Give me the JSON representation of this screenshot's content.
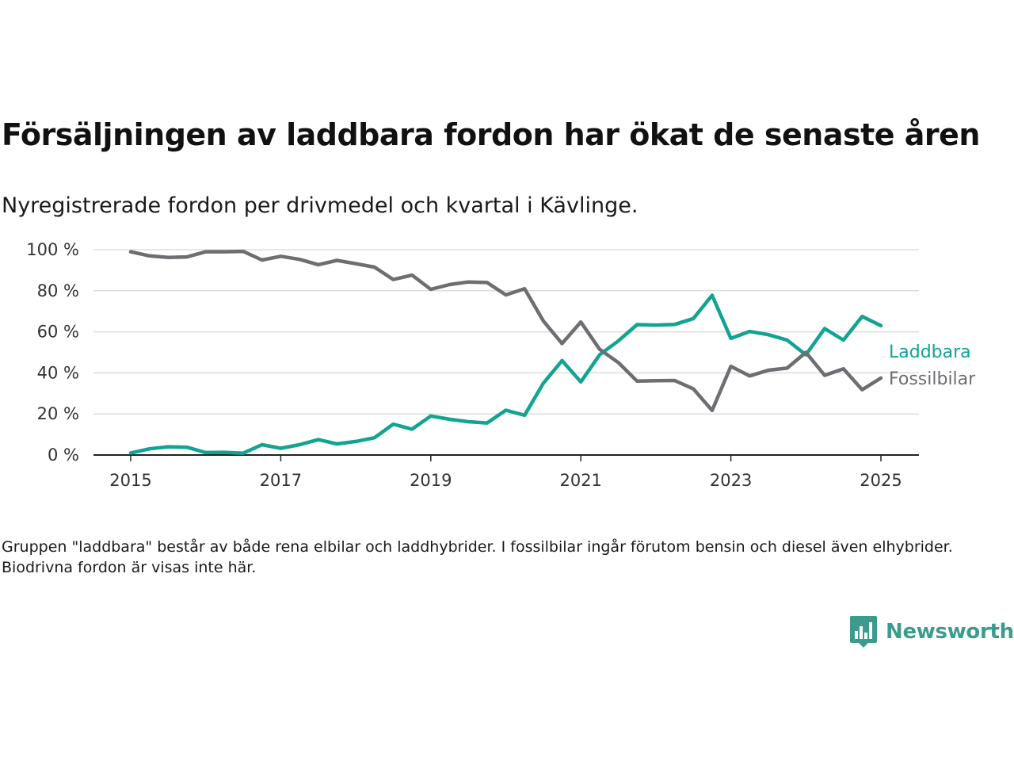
{
  "title": "Försäljningen av laddbara fordon har ökat de senaste åren",
  "subtitle": "Nyregistrerade fordon per drivmedel och kvartal i Kävlinge.",
  "note": "Gruppen \"laddbara\" består av både rena elbilar och laddhybrider. I fossilbilar ingår förutom bensin och diesel även elhybrider. Biodrivna fordon är visas inte här.",
  "brand": {
    "name": "Newsworthy",
    "color": "#3d9b8e"
  },
  "chart_data": {
    "type": "line",
    "title": "Försäljningen av laddbara fordon har ökat de senaste åren",
    "xlabel": "",
    "ylabel": "",
    "x_ticks": [
      "2015",
      "2017",
      "2019",
      "2021",
      "2023",
      "2025"
    ],
    "y_ticks": [
      "0 %",
      "20 %",
      "40 %",
      "60 %",
      "80 %",
      "100 %"
    ],
    "ylim": [
      0,
      100
    ],
    "grid": "horizontal",
    "legend": "inline-right",
    "x": [
      "2015Q1",
      "2015Q2",
      "2015Q3",
      "2015Q4",
      "2016Q1",
      "2016Q2",
      "2016Q3",
      "2016Q4",
      "2017Q1",
      "2017Q2",
      "2017Q3",
      "2017Q4",
      "2018Q1",
      "2018Q2",
      "2018Q3",
      "2018Q4",
      "2019Q1",
      "2019Q2",
      "2019Q3",
      "2019Q4",
      "2020Q1",
      "2020Q2",
      "2020Q3",
      "2020Q4",
      "2021Q1",
      "2021Q2",
      "2021Q3",
      "2021Q4",
      "2022Q1",
      "2022Q2",
      "2022Q3",
      "2022Q4",
      "2023Q1",
      "2023Q2",
      "2023Q3",
      "2023Q4",
      "2024Q1",
      "2024Q2",
      "2024Q3",
      "2024Q4",
      "2025Q1"
    ],
    "series": [
      {
        "name": "Laddbara",
        "color": "#12a392",
        "values": [
          1,
          3,
          4,
          3.8,
          1.2,
          1.3,
          0.9,
          5,
          3.3,
          5,
          7.5,
          5.4,
          6.6,
          8.4,
          15,
          12.6,
          19,
          17.4,
          16.2,
          15.6,
          21.8,
          19.4,
          35,
          46,
          35.6,
          48.8,
          55.6,
          63.5,
          63.3,
          63.6,
          66.5,
          77.8,
          56.8,
          60.2,
          58.6,
          56,
          48.8,
          61.6,
          56,
          67.5,
          63
        ]
      },
      {
        "name": "Fossilbilar",
        "color": "#6e6d72",
        "values": [
          99,
          97,
          96.2,
          96.5,
          99,
          99,
          99.2,
          95,
          96.8,
          95.3,
          92.7,
          94.8,
          93.2,
          91.5,
          85.5,
          87.6,
          80.7,
          83,
          84.3,
          84,
          78,
          81,
          65.3,
          54.3,
          64.8,
          51.5,
          45,
          36,
          36.2,
          36.3,
          32.2,
          21.7,
          43.2,
          38.5,
          41.3,
          42.3,
          50,
          38.8,
          42,
          31.8,
          37.5
        ]
      }
    ]
  }
}
